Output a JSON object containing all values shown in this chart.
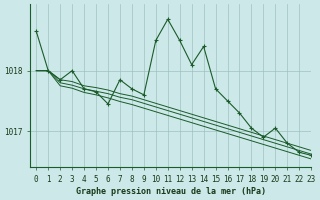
{
  "xlabel": "Graphe pression niveau de la mer (hPa)",
  "bg_color": "#cce8e8",
  "grid_color": "#a0c0c0",
  "line_color": "#1a5c2a",
  "ytick_vals": [
    1017,
    1018
  ],
  "xlim": [
    -0.5,
    23
  ],
  "ylim": [
    1016.4,
    1019.1
  ],
  "series_jagged": [
    1018.65,
    1018.0,
    1017.85,
    1018.0,
    1017.7,
    1017.65,
    1017.45,
    1017.85,
    1017.7,
    1017.6,
    1018.5,
    1018.85,
    1018.5,
    1018.1,
    1018.4,
    1017.7,
    1017.5,
    1017.3,
    1017.05,
    1016.9,
    1017.05,
    1016.8,
    1016.65,
    1016.6
  ],
  "series_smooth": [
    [
      1018.0,
      1018.0,
      1017.85,
      1017.82,
      1017.75,
      1017.72,
      1017.68,
      1017.62,
      1017.58,
      1017.52,
      1017.46,
      1017.4,
      1017.34,
      1017.28,
      1017.22,
      1017.16,
      1017.1,
      1017.04,
      1016.98,
      1016.92,
      1016.86,
      1016.8,
      1016.74,
      1016.68
    ],
    [
      1018.0,
      1018.0,
      1017.8,
      1017.76,
      1017.7,
      1017.66,
      1017.62,
      1017.56,
      1017.52,
      1017.46,
      1017.4,
      1017.34,
      1017.28,
      1017.22,
      1017.16,
      1017.1,
      1017.04,
      1016.98,
      1016.92,
      1016.86,
      1016.8,
      1016.74,
      1016.68,
      1016.62
    ],
    [
      1018.0,
      1018.0,
      1017.75,
      1017.71,
      1017.64,
      1017.6,
      1017.55,
      1017.49,
      1017.44,
      1017.38,
      1017.32,
      1017.26,
      1017.2,
      1017.14,
      1017.08,
      1017.02,
      1016.96,
      1016.9,
      1016.84,
      1016.78,
      1016.72,
      1016.66,
      1016.6,
      1016.54
    ]
  ],
  "tick_fontsize": 5.5,
  "label_fontsize": 6.0
}
